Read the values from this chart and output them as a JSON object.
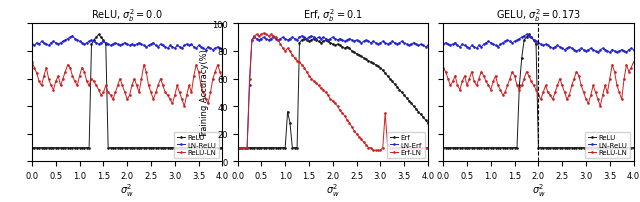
{
  "panel1": {
    "title": "ReLU, $\\sigma_b^2 = 0.0$",
    "xlabel": "$\\sigma_w^2$",
    "ylabel": "",
    "xlim": [
      0.0,
      4.0
    ],
    "ylim": [
      0,
      100
    ],
    "xticks": [
      0.0,
      0.5,
      1.0,
      1.5,
      2.0,
      2.5,
      3.0,
      3.5,
      4.0
    ],
    "vline": null,
    "legend": [
      "ReLU",
      "LN-ReLU",
      "ReLU-LN"
    ],
    "show_yticks": false
  },
  "panel2": {
    "title": "Erf, $\\sigma_b^2 = 0.1$",
    "xlabel": "$\\sigma_w^2$",
    "ylabel": "Training Accuracy(%)",
    "xlim": [
      0.0,
      4.0
    ],
    "ylim": [
      0,
      100
    ],
    "yticks": [
      0,
      20,
      40,
      60,
      80,
      100
    ],
    "xticks": [
      0.0,
      0.5,
      1.0,
      1.5,
      2.0,
      2.5,
      3.0,
      3.5,
      4.0
    ],
    "vline": null,
    "legend": [
      "Erf",
      "LN-Erf",
      "Erf-LN"
    ],
    "show_yticks": true
  },
  "panel3": {
    "title": "GELU, $\\sigma_b^2 = 0.173$",
    "xlabel": "$\\sigma_w^2$",
    "ylabel": "",
    "xlim": [
      0.0,
      4.0
    ],
    "ylim": [
      0,
      100
    ],
    "xticks": [
      0.0,
      0.5,
      1.0,
      1.5,
      2.0,
      2.5,
      3.0,
      3.5,
      4.0
    ],
    "vline": 2.0,
    "legend": [
      "ReLU",
      "LN-ReLU",
      "ReLU-LN"
    ],
    "show_yticks": false
  },
  "colors": {
    "black": "#1a1a1a",
    "blue": "#2222cc",
    "red": "#cc2222"
  },
  "panel1_black": [
    10,
    10,
    10,
    10,
    10,
    10,
    10,
    10,
    10,
    10,
    10,
    10,
    10,
    10,
    10,
    10,
    10,
    10,
    10,
    10,
    10,
    10,
    10,
    10,
    10,
    85,
    88,
    90,
    92,
    90,
    88,
    85,
    10,
    10,
    10,
    10,
    10,
    10,
    10,
    10,
    10,
    10,
    10,
    10,
    10,
    10,
    10,
    10,
    10,
    10,
    10,
    10,
    10,
    10,
    10,
    10,
    10,
    10,
    10,
    10,
    10,
    10,
    10,
    10,
    10,
    10,
    10,
    10,
    10,
    10,
    10,
    10,
    10,
    10,
    10,
    10,
    10,
    10,
    10,
    10,
    10
  ],
  "panel1_blue": [
    85,
    84,
    86,
    85,
    87,
    86,
    85,
    84,
    86,
    87,
    86,
    85,
    86,
    87,
    88,
    89,
    90,
    91,
    89,
    88,
    87,
    86,
    85,
    86,
    87,
    88,
    87,
    86,
    85,
    86,
    87,
    86,
    85,
    84,
    85,
    86,
    85,
    84,
    85,
    86,
    85,
    84,
    85,
    84,
    85,
    86,
    85,
    84,
    83,
    84,
    85,
    86,
    84,
    83,
    85,
    84,
    83,
    82,
    84,
    83,
    82,
    84,
    83,
    82,
    84,
    85,
    84,
    85,
    83,
    82,
    84,
    83,
    82,
    81,
    83,
    82,
    81,
    82,
    83,
    82,
    81
  ],
  "panel1_red": [
    72,
    68,
    64,
    58,
    55,
    62,
    68,
    60,
    55,
    52,
    58,
    62,
    55,
    60,
    65,
    70,
    68,
    62,
    58,
    55,
    62,
    68,
    65,
    58,
    55,
    60,
    58,
    55,
    52,
    48,
    50,
    55,
    50,
    48,
    45,
    50,
    55,
    60,
    55,
    50,
    45,
    48,
    55,
    60,
    55,
    50,
    60,
    70,
    65,
    55,
    50,
    45,
    50,
    55,
    60,
    55,
    50,
    48,
    45,
    42,
    48,
    55,
    50,
    45,
    40,
    48,
    55,
    50,
    62,
    70,
    65,
    55,
    50,
    45,
    42,
    50,
    60,
    65,
    70,
    65,
    60
  ],
  "panel2_black": [
    10,
    10,
    10,
    10,
    10,
    10,
    10,
    10,
    10,
    10,
    10,
    10,
    10,
    10,
    10,
    10,
    10,
    10,
    10,
    10,
    10,
    36,
    28,
    10,
    10,
    10,
    86,
    88,
    89,
    88,
    87,
    88,
    89,
    88,
    87,
    86,
    87,
    88,
    87,
    86,
    85,
    84,
    85,
    84,
    83,
    82,
    83,
    82,
    80,
    79,
    78,
    77,
    76,
    75,
    74,
    73,
    72,
    71,
    70,
    69,
    68,
    66,
    64,
    62,
    60,
    58,
    56,
    54,
    52,
    50,
    48,
    46,
    44,
    42,
    40,
    38,
    36,
    34,
    32,
    30,
    28
  ],
  "panel2_blue": [
    10,
    10,
    10,
    10,
    10,
    55,
    88,
    90,
    89,
    88,
    89,
    90,
    89,
    88,
    89,
    90,
    89,
    88,
    89,
    90,
    89,
    88,
    89,
    90,
    89,
    88,
    90,
    91,
    90,
    89,
    90,
    91,
    90,
    89,
    90,
    89,
    90,
    89,
    88,
    89,
    90,
    89,
    88,
    89,
    88,
    87,
    88,
    89,
    88,
    87,
    88,
    87,
    86,
    87,
    88,
    87,
    86,
    87,
    86,
    85,
    86,
    87,
    86,
    85,
    86,
    87,
    86,
    85,
    86,
    87,
    86,
    85,
    84,
    85,
    86,
    85,
    84,
    85,
    84,
    83,
    84
  ],
  "panel2_red": [
    10,
    10,
    10,
    10,
    10,
    60,
    88,
    91,
    92,
    91,
    92,
    93,
    92,
    91,
    92,
    91,
    90,
    88,
    85,
    82,
    80,
    82,
    80,
    77,
    75,
    73,
    72,
    70,
    68,
    65,
    62,
    60,
    58,
    57,
    55,
    53,
    52,
    50,
    48,
    45,
    44,
    42,
    40,
    37,
    35,
    33,
    30,
    28,
    25,
    22,
    20,
    18,
    16,
    14,
    12,
    10,
    10,
    8,
    8,
    8,
    8,
    10,
    35,
    12,
    10,
    10,
    10,
    10,
    10,
    10,
    10,
    10,
    10,
    10,
    10,
    10,
    10,
    10,
    10,
    10,
    10
  ],
  "panel3_black": [
    10,
    10,
    10,
    10,
    10,
    10,
    10,
    10,
    10,
    10,
    10,
    10,
    10,
    10,
    10,
    10,
    10,
    10,
    10,
    10,
    10,
    10,
    10,
    10,
    10,
    10,
    10,
    10,
    10,
    10,
    10,
    10,
    55,
    75,
    88,
    90,
    92,
    90,
    88,
    85,
    10,
    10,
    10,
    10,
    10,
    10,
    10,
    10,
    10,
    10,
    10,
    10,
    10,
    10,
    10,
    10,
    10,
    10,
    10,
    10,
    10,
    10,
    10,
    10,
    10,
    10,
    10,
    10,
    10,
    10,
    10,
    10,
    10,
    10,
    10,
    10,
    10,
    10,
    10,
    10,
    10
  ],
  "panel3_blue": [
    85,
    86,
    85,
    84,
    85,
    86,
    84,
    83,
    85,
    84,
    83,
    82,
    84,
    83,
    82,
    84,
    83,
    85,
    86,
    87,
    86,
    85,
    84,
    83,
    85,
    86,
    87,
    88,
    87,
    86,
    87,
    88,
    89,
    90,
    91,
    92,
    91,
    90,
    88,
    87,
    86,
    85,
    84,
    85,
    84,
    83,
    82,
    83,
    84,
    83,
    82,
    81,
    82,
    83,
    82,
    81,
    80,
    81,
    82,
    81,
    80,
    81,
    82,
    81,
    80,
    79,
    81,
    82,
    81,
    80,
    79,
    81,
    80,
    79,
    80,
    81,
    80,
    79,
    81,
    82,
    81
  ],
  "panel3_red": [
    68,
    65,
    60,
    55,
    58,
    62,
    55,
    52,
    58,
    62,
    55,
    60,
    65,
    58,
    55,
    60,
    65,
    62,
    58,
    55,
    52,
    58,
    62,
    55,
    52,
    48,
    50,
    55,
    60,
    65,
    62,
    55,
    52,
    55,
    60,
    65,
    62,
    58,
    55,
    52,
    48,
    45,
    50,
    55,
    50,
    48,
    45,
    50,
    55,
    60,
    55,
    50,
    45,
    48,
    55,
    60,
    65,
    62,
    55,
    50,
    45,
    42,
    48,
    55,
    50,
    45,
    40,
    48,
    55,
    50,
    60,
    70,
    65,
    55,
    50,
    45,
    60,
    70,
    65,
    68,
    72
  ]
}
